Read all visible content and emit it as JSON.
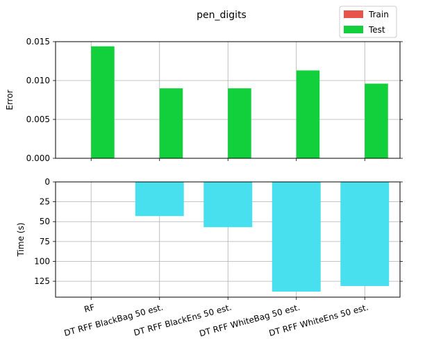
{
  "chart_data": {
    "type": "bar",
    "title": "pen_digits",
    "categories": [
      "RF",
      "DT RFF BlackBag 50 est.",
      "DT RFF BlackEns 50 est.",
      "DT RFF WhiteBag 50 est.",
      "DT RFF WhiteEns 50 est."
    ],
    "legend": {
      "placement": "top-right",
      "entries": [
        {
          "name": "Train",
          "color": "#e8534a"
        },
        {
          "name": "Test",
          "color": "#11d03b"
        }
      ]
    },
    "grid": true,
    "panels": [
      {
        "ylabel": "Error",
        "ylim": [
          0,
          0.015
        ],
        "yticks": [
          "0.000",
          "0.005",
          "0.010",
          "0.015"
        ],
        "ytick_values": [
          0,
          0.005,
          0.01,
          0.015
        ],
        "series": [
          {
            "name": "Train",
            "color": "#e8534a",
            "values": [
              0,
              0,
              0,
              0,
              0
            ]
          },
          {
            "name": "Test",
            "color": "#11d03b",
            "values": [
              0.0144,
              0.009,
              0.009,
              0.0113,
              0.0096
            ]
          }
        ]
      },
      {
        "ylabel": "Time (s)",
        "ylim": [
          0,
          145
        ],
        "inverted": true,
        "yticks": [
          "0",
          "25",
          "50",
          "75",
          "100",
          "125"
        ],
        "ytick_values": [
          0,
          25,
          50,
          75,
          100,
          125
        ],
        "series": [
          {
            "color": "#48e0ef",
            "values": [
              0,
              43,
              57,
              138,
              131
            ]
          }
        ]
      }
    ]
  }
}
